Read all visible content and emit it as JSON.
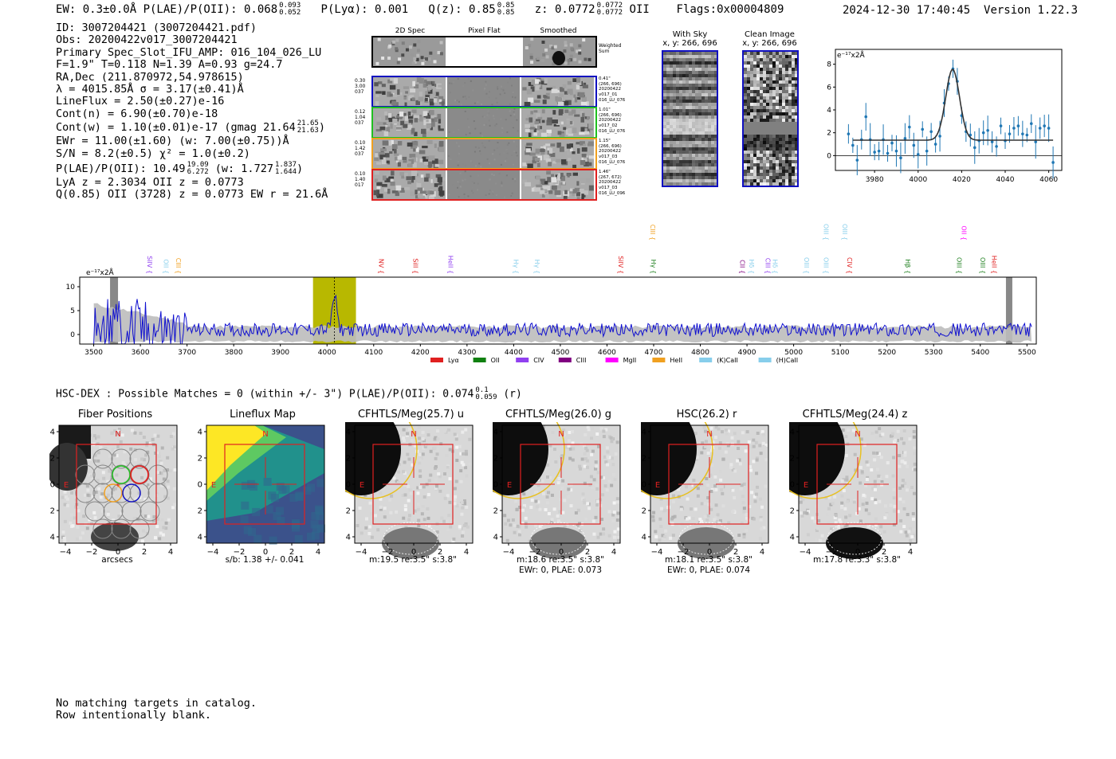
{
  "header": {
    "left": "EW: 0.3±0.0Å  P(LAE)/P(OII): 0.068",
    "left_sup_hi": "0.093",
    "left_sup_lo": "0.052",
    "ply": "P(Lyα): 0.001",
    "qz": "Q(z): 0.85",
    "qz_hi": "0.85",
    "qz_lo": "0.85",
    "z": "z: 0.0772",
    "z_hi": "0.0772",
    "z_lo": "0.0772",
    "z_tail": "OII",
    "flags": "Flags:0x00004809",
    "datetime": "2024-12-30 17:40:45",
    "version": "Version 1.22.3"
  },
  "info": {
    "id": "ID: 3007204421 (3007204421.pdf)",
    "obs": "Obs: 20200422v017_3007204421",
    "primary": "Primary Spec_Slot_IFU_AMP: 016_104_026_LU",
    "params": "F=1.9\"  T=0.118  N=1.39  A=0.93  g=24.7",
    "radec": "RA,Dec (211.870972,54.978615)",
    "lambda": "λ = 4015.85Å  σ = 3.17(±0.41)Å",
    "lineflux": "LineFlux = 2.50(±0.27)e-16",
    "contn": "Cont(n) = 6.90(±0.70)e-18",
    "contw": "Cont(w) = 1.10(±0.01)e-17 (gmag 21.64",
    "contw_hi": "21.65",
    "contw_lo": "21.63",
    "contw_tail": ")",
    "ewr": "EWr = 11.00(±1.60) (w: 7.00(±0.75))Å",
    "sn": "S/N = 8.2(±0.5)  χ² = 1.0(±0.2)",
    "plae": "P(LAE)/P(OII): 10.49",
    "plae_hi": "19.09",
    "plae_lo": "6.272",
    "plae_mid": "(w: 1.727",
    "plae_w_hi": "1.837",
    "plae_w_lo": "1.644",
    "plae_tail": ")",
    "lya": "LyA z = 2.3034  OII z = 0.0773",
    "q": "Q(0.85) OII (3728) z = 0.0773  EW r = 21.6Å"
  },
  "cutouts": {
    "col_titles": [
      "2D Spec",
      "Pixel Flat",
      "Smoothed"
    ],
    "weighted": "Weighted Sum",
    "rows": [
      {
        "left": [
          "0.30",
          "3.00",
          "037"
        ],
        "right": [
          "0.41\"",
          "(266, 696)",
          "20200422",
          "v017_01",
          "016_LU_076"
        ],
        "color": "#1010c0"
      },
      {
        "left": [
          "0.12",
          "1.04",
          "037"
        ],
        "right": [
          "1.01\"",
          "(266, 696)",
          "20200422",
          "v017_02",
          "016_LU_076"
        ],
        "color": "#20c020"
      },
      {
        "left": [
          "0.10",
          "1.42",
          "037"
        ],
        "right": [
          "1.15\"",
          "(266, 696)",
          "20200422",
          "v017_03",
          "016_LU_076"
        ],
        "color": "#f0a020"
      },
      {
        "left": [
          "0.10",
          "1.40",
          "017"
        ],
        "right": [
          "1.46\"",
          "(267, 672)",
          "20200422",
          "v017_03",
          "016_LU_096"
        ],
        "color": "#e02020"
      }
    ],
    "with_sky": "With Sky",
    "with_sky_xy": "x, y: 266, 696",
    "clean": "Clean Image",
    "clean_xy": "x, y: 266, 696"
  },
  "chart_data": [
    {
      "type": "scatter",
      "title": "",
      "ylabel": "e⁻¹⁷x2Å",
      "xlim": [
        3962,
        4066
      ],
      "ylim": [
        -1.3,
        9.3
      ],
      "xticks": [
        3980,
        4000,
        4020,
        4040,
        4060
      ],
      "yticks": [
        0,
        2,
        4,
        6,
        8
      ],
      "x": [
        3968,
        3970,
        3972,
        3974,
        3976,
        3978,
        3980,
        3982,
        3984,
        3986,
        3988,
        3990,
        3992,
        3994,
        3996,
        3998,
        4000,
        4002,
        4004,
        4006,
        4008,
        4010,
        4012,
        4014,
        4016,
        4018,
        4020,
        4022,
        4024,
        4026,
        4028,
        4030,
        4032,
        4034,
        4036,
        4038,
        4040,
        4042,
        4044,
        4046,
        4048,
        4050,
        4052,
        4054,
        4056,
        4058,
        4060,
        4062
      ],
      "values": [
        1.9,
        0.9,
        -0.4,
        1.4,
        3.4,
        1.4,
        0.3,
        0.4,
        1.4,
        0.2,
        1.1,
        0.4,
        -0.2,
        1.5,
        2.5,
        0.9,
        0.1,
        2.3,
        0.4,
        2.1,
        1.0,
        1.7,
        4.6,
        6.3,
        7.6,
        6.5,
        3.5,
        2.1,
        1.8,
        0.7,
        1.3,
        2.0,
        2.2,
        1.2,
        0.8,
        2.6,
        1.3,
        1.9,
        2.4,
        2.6,
        1.9,
        1.8,
        2.8,
        1.2,
        2.4,
        2.6,
        2.4,
        -0.6
      ],
      "model": {
        "center": 4015.85,
        "sigma": 3.17,
        "amp": 6.2,
        "continuum": 1.35
      }
    },
    {
      "type": "line",
      "title": "",
      "ylabel": "e⁻¹⁷x2Å",
      "xlim": [
        3470,
        5520
      ],
      "ylim": [
        -2,
        12
      ],
      "xticks": [
        3500,
        3600,
        3700,
        3800,
        3900,
        4000,
        4100,
        4200,
        4300,
        4400,
        4500,
        4600,
        4700,
        4800,
        4900,
        5000,
        5100,
        5200,
        5300,
        5400,
        5500
      ],
      "yticks": [
        0,
        5,
        10
      ],
      "highlight": [
        3970,
        4062
      ],
      "peak": 4015.85,
      "line_markers": [
        {
          "name": "SiIV",
          "x": 3610,
          "color": "#9040f0",
          "tier": 1
        },
        {
          "name": "OII",
          "x": 3645,
          "color": "#87ceeb",
          "tier": 1
        },
        {
          "name": "CIII",
          "x": 3672,
          "color": "#f0a020",
          "tier": 1
        },
        {
          "name": "NV",
          "x": 4106,
          "color": "#e02020",
          "tier": 1
        },
        {
          "name": "SiII",
          "x": 4180,
          "color": "#e02020",
          "tier": 1
        },
        {
          "name": "HeII",
          "x": 4255,
          "color": "#9040f0",
          "tier": 1
        },
        {
          "name": "Hγ",
          "x": 4395,
          "color": "#87ceeb",
          "tier": 1
        },
        {
          "name": "Hγ",
          "x": 4440,
          "color": "#87ceeb",
          "tier": 1
        },
        {
          "name": "SiIV",
          "x": 4620,
          "color": "#e02020",
          "tier": 1
        },
        {
          "name": "CIII",
          "x": 4688,
          "color": "#f0a020",
          "tier": 2
        },
        {
          "name": "Hγ",
          "x": 4690,
          "color": "#208020",
          "tier": 1
        },
        {
          "name": "CII",
          "x": 4880,
          "color": "#800080",
          "tier": 1
        },
        {
          "name": "Hδ",
          "x": 4900,
          "color": "#87ceeb",
          "tier": 1
        },
        {
          "name": "CIII",
          "x": 4935,
          "color": "#9040f0",
          "tier": 1
        },
        {
          "name": "Hδ",
          "x": 4950,
          "color": "#87ceeb",
          "tier": 1
        },
        {
          "name": "OIII",
          "x": 5018,
          "color": "#87ceeb",
          "tier": 1
        },
        {
          "name": "OIII",
          "x": 5060,
          "color": "#87ceeb",
          "tier": 1
        },
        {
          "name": "OIII",
          "x": 5060,
          "color": "#87ceeb",
          "tier": 2
        },
        {
          "name": "OIII",
          "x": 5100,
          "color": "#87ceeb",
          "tier": 2
        },
        {
          "name": "CIV",
          "x": 5110,
          "color": "#e02020",
          "tier": 1
        },
        {
          "name": "Hβ",
          "x": 5235,
          "color": "#208020",
          "tier": 1
        },
        {
          "name": "OIII",
          "x": 5345,
          "color": "#208020",
          "tier": 1
        },
        {
          "name": "OII",
          "x": 5355,
          "color": "#ff00ff",
          "tier": 2
        },
        {
          "name": "OIII",
          "x": 5395,
          "color": "#208020",
          "tier": 1
        },
        {
          "name": "HeII",
          "x": 5420,
          "color": "#e02020",
          "tier": 1
        }
      ],
      "legend": [
        {
          "name": "Lyα",
          "color": "#e02020"
        },
        {
          "name": "OII",
          "color": "#108010"
        },
        {
          "name": "CIV",
          "color": "#9040f0"
        },
        {
          "name": "CIII",
          "color": "#800080"
        },
        {
          "name": "MgII",
          "color": "#ff00ff"
        },
        {
          "name": "HeII",
          "color": "#f0a020"
        },
        {
          "name": "(K)CaII",
          "color": "#87ceeb"
        },
        {
          "name": "(H)CaII",
          "color": "#87ceeb"
        }
      ]
    }
  ],
  "hsc": {
    "text": "HSC-DEX : Possible Matches = 0 (within +/- 3\")  P(LAE)/P(OII): 0.074",
    "hi": "0.1",
    "lo": "0.059",
    "tail": "(r)"
  },
  "panels": [
    {
      "title": "Fiber Positions",
      "cap1": "arcsecs",
      "cap2": ""
    },
    {
      "title": "Lineflux Map",
      "cap1": "s/b: 1.38 +/- 0.041",
      "cap2": ""
    },
    {
      "title": "CFHTLS/Meg(25.7) u",
      "cap1": "m:19.5  re:3.5\"  s:3.8\"",
      "cap2": ""
    },
    {
      "title": "CFHTLS/Meg(26.0) g",
      "cap1": "m:18.6  re:3.5\"  s:3.8\"",
      "cap2": "EWr: 0, PLAE: 0.073"
    },
    {
      "title": "HSC(26.2) r",
      "cap1": "m:18.1  re:3.5\"  s:3.8\"",
      "cap2": "EWr: 0, PLAE: 0.074"
    },
    {
      "title": "CFHTLS/Meg(24.4) z",
      "cap1": "m:17.8  re:3.3\"  s:3.8\"",
      "cap2": ""
    }
  ],
  "panel_axis": {
    "ticks": [
      "4",
      "2",
      "0",
      "−2",
      "−4"
    ],
    "xticks": [
      "−4",
      "−2",
      "0",
      "2",
      "4"
    ],
    "n_label": "N",
    "e_label": "E"
  },
  "footer": {
    "line1": "No matching targets in catalog.",
    "line2": "Row intentionally blank."
  }
}
